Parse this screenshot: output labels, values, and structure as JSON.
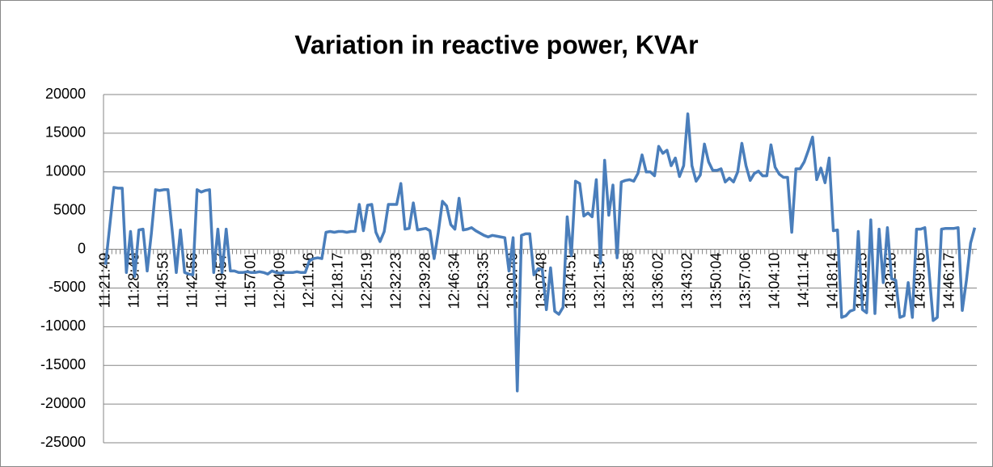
{
  "chart_data": {
    "type": "line",
    "title": "Variation in reactive power, KVAr",
    "categories": [
      "11:21:49",
      null,
      null,
      null,
      null,
      null,
      null,
      "11:28:49",
      null,
      null,
      null,
      null,
      null,
      null,
      "11:35:53",
      null,
      null,
      null,
      null,
      null,
      null,
      "11:42:56",
      null,
      null,
      null,
      null,
      null,
      null,
      "11:49:57",
      null,
      null,
      null,
      null,
      null,
      null,
      "11:57:01",
      null,
      null,
      null,
      null,
      null,
      null,
      "12:04:09",
      null,
      null,
      null,
      null,
      null,
      null,
      "12:11:16",
      null,
      null,
      null,
      null,
      null,
      null,
      "12:18:17",
      null,
      null,
      null,
      null,
      null,
      null,
      "12:25:19",
      null,
      null,
      null,
      null,
      null,
      null,
      "12:32:23",
      null,
      null,
      null,
      null,
      null,
      null,
      "12:39:28",
      null,
      null,
      null,
      null,
      null,
      null,
      "12:46:34",
      null,
      null,
      null,
      null,
      null,
      null,
      "12:53:35",
      null,
      null,
      null,
      null,
      null,
      null,
      "13:00:40",
      null,
      null,
      null,
      null,
      null,
      null,
      "13:07:48",
      null,
      null,
      null,
      null,
      null,
      null,
      "13:14:51",
      null,
      null,
      null,
      null,
      null,
      null,
      "13:21:54",
      null,
      null,
      null,
      null,
      null,
      null,
      "13:28:58",
      null,
      null,
      null,
      null,
      null,
      null,
      "13:36:02",
      null,
      null,
      null,
      null,
      null,
      null,
      "13:43:02",
      null,
      null,
      null,
      null,
      null,
      null,
      "13:50:04",
      null,
      null,
      null,
      null,
      null,
      null,
      "13:57:06",
      null,
      null,
      null,
      null,
      null,
      null,
      "14:04:10",
      null,
      null,
      null,
      null,
      null,
      null,
      "14:11:14",
      null,
      null,
      null,
      null,
      null,
      null,
      "14:18:14",
      null,
      null,
      null,
      null,
      null,
      null,
      "14:25:15",
      null,
      null,
      null,
      null,
      null,
      null,
      "14:32:16",
      null,
      null,
      null,
      null,
      null,
      null,
      "14:39:16",
      null,
      null,
      null,
      null,
      null,
      null,
      "14:46:17",
      null,
      null,
      null,
      null,
      null,
      null
    ],
    "values": [
      -2000,
      3000,
      8000,
      7900,
      7900,
      -3000,
      2300,
      -3500,
      2500,
      2600,
      -2800,
      2000,
      7700,
      7600,
      7700,
      7700,
      2500,
      -3000,
      2500,
      -3000,
      -3200,
      -3300,
      7700,
      7400,
      7600,
      7700,
      -3000,
      2600,
      -3000,
      2600,
      -2800,
      -2800,
      -3000,
      -3000,
      -2900,
      -3000,
      -3000,
      -2900,
      -3000,
      -3200,
      -2800,
      -3000,
      -3100,
      -3000,
      -3000,
      -3000,
      -2900,
      -3000,
      -3000,
      -1500,
      -1200,
      -1100,
      -1200,
      2200,
      2300,
      2200,
      2300,
      2300,
      2200,
      2300,
      2300,
      5800,
      2400,
      5700,
      5800,
      2200,
      1000,
      2300,
      5800,
      5800,
      5800,
      8500,
      2600,
      2700,
      6000,
      2500,
      2600,
      2700,
      2400,
      -1200,
      2200,
      6200,
      5600,
      3200,
      2600,
      6600,
      2500,
      2600,
      2800,
      2400,
      2100,
      1800,
      1600,
      1800,
      1700,
      1600,
      1500,
      -2800,
      1500,
      -18300,
      1800,
      2000,
      2000,
      -3300,
      -2500,
      -2600,
      -7800,
      -2400,
      -8000,
      -8400,
      -7500,
      4200,
      -800,
      8800,
      8500,
      4300,
      4700,
      4200,
      9000,
      -1800,
      11500,
      4400,
      8300,
      -1100,
      8700,
      8900,
      9000,
      8800,
      9800,
      12200,
      10000,
      10000,
      9500,
      13300,
      12400,
      12800,
      10800,
      11800,
      9400,
      10800,
      17500,
      10800,
      8800,
      9600,
      13600,
      11300,
      10200,
      10200,
      10400,
      8700,
      9200,
      8700,
      10000,
      13700,
      10800,
      8900,
      9800,
      10100,
      9500,
      9500,
      13500,
      10600,
      9700,
      9300,
      9300,
      2200,
      10400,
      10400,
      11300,
      12800,
      14500,
      9000,
      10500,
      8600,
      11800,
      2400,
      2500,
      -8800,
      -8600,
      -8000,
      -7800,
      2300,
      -7800,
      -8200,
      3800,
      -8300,
      2600,
      -4300,
      2800,
      -3800,
      -4000,
      -8800,
      -8600,
      -4300,
      -8800,
      2600,
      2600,
      2800,
      -2800,
      -9200,
      -8800,
      2600,
      2700,
      2700,
      2700,
      2800,
      -7900,
      -4000,
      800,
      2800
    ],
    "color": "#4a7ebb",
    "ylim": [
      -25000,
      20000
    ],
    "yticks": [
      -25000,
      -20000,
      -15000,
      -10000,
      -5000,
      0,
      5000,
      10000,
      15000,
      20000
    ],
    "grid": true
  }
}
